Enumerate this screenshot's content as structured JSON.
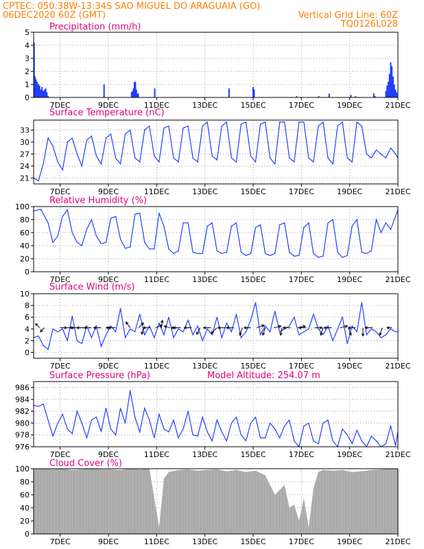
{
  "header": {
    "line1_left": "CPTEC:   050:38W-13:34S  SAO MIGUEL DO ARAGUAIA (GO)",
    "line2_left": "06DEC2020 60Z (GMT)",
    "line2_right": "Vertical Grid Line: 60Z",
    "line3_right": "TQ0126L028"
  },
  "colors": {
    "series": "#1f3fff",
    "cloud": "#aaaaaa",
    "header_text": "#ff7f00",
    "panel_title": "#e0007f"
  },
  "x_axis": {
    "tick_labels": [
      "7DEC",
      "9DEC",
      "11DEC",
      "13DEC",
      "15DEC",
      "17DEC",
      "19DEC",
      "21DEC"
    ],
    "start_day": 5.9,
    "end_day": 21.0
  },
  "chart_data": [
    {
      "type": "bar",
      "title": "Precipitation (mm/h)",
      "ylim": [
        0,
        5
      ],
      "yticks": [
        "0",
        "1",
        "2",
        "3",
        "4",
        "5"
      ],
      "x_days": [
        5.92,
        5.96,
        6.0,
        6.05,
        6.1,
        6.15,
        6.2,
        6.25,
        6.3,
        6.35,
        6.4,
        6.45,
        6.5,
        8.82,
        9.96,
        10.0,
        10.04,
        10.08,
        10.12,
        10.16,
        10.2,
        10.24,
        10.92,
        14.0,
        15.0,
        15.04,
        16.8,
        17.72,
        18.15,
        19.05,
        19.25,
        20.0,
        20.05,
        20.5,
        20.55,
        20.6,
        20.65,
        20.7,
        20.75,
        20.8,
        20.85,
        20.9,
        20.95
      ],
      "values": [
        4.2,
        1.6,
        1.4,
        1.2,
        1.0,
        0.9,
        0.6,
        0.8,
        0.5,
        0.6,
        0.7,
        0.4,
        0.1,
        1.0,
        0.4,
        0.5,
        0.7,
        1.2,
        1.2,
        0.6,
        0.3,
        0.3,
        0.7,
        0.7,
        0.8,
        0.6,
        0.1,
        0.1,
        0.3,
        0.2,
        0.1,
        0.3,
        0.1,
        0.5,
        0.9,
        1.2,
        1.8,
        2.7,
        2.4,
        1.6,
        1.0,
        0.6,
        0.4
      ]
    },
    {
      "type": "line",
      "title": "Surface Temperature (nC)",
      "ylim": [
        19.5,
        35.5
      ],
      "yticks": [
        "21",
        "24",
        "27",
        "30",
        "33"
      ],
      "x_days": [
        5.9,
        6.1,
        6.3,
        6.5,
        6.7,
        6.9,
        7.1,
        7.3,
        7.5,
        7.7,
        7.9,
        8.1,
        8.3,
        8.5,
        8.7,
        8.9,
        9.1,
        9.3,
        9.5,
        9.7,
        9.9,
        10.1,
        10.3,
        10.5,
        10.7,
        10.9,
        11.1,
        11.3,
        11.5,
        11.7,
        11.9,
        12.1,
        12.3,
        12.5,
        12.7,
        12.9,
        13.1,
        13.3,
        13.5,
        13.7,
        13.9,
        14.1,
        14.3,
        14.5,
        14.7,
        14.9,
        15.1,
        15.3,
        15.5,
        15.7,
        15.9,
        16.1,
        16.3,
        16.5,
        16.7,
        16.9,
        17.1,
        17.3,
        17.5,
        17.7,
        17.9,
        18.1,
        18.3,
        18.5,
        18.7,
        18.9,
        19.1,
        19.3,
        19.5,
        19.7,
        19.9,
        20.1,
        20.3,
        20.5,
        20.7,
        20.9,
        21.0
      ],
      "values": [
        21.0,
        20.3,
        24.5,
        31.0,
        29.0,
        25.0,
        23.0,
        30.0,
        31.0,
        27.0,
        24.0,
        30.5,
        31.5,
        26.5,
        24.5,
        31.0,
        32.0,
        26.0,
        24.5,
        32.0,
        33.0,
        26.0,
        25.0,
        33.0,
        34.0,
        26.5,
        25.0,
        33.5,
        34.0,
        26.0,
        25.0,
        33.5,
        34.0,
        26.0,
        25.0,
        34.0,
        35.0,
        26.5,
        25.5,
        34.0,
        35.0,
        26.0,
        25.0,
        34.5,
        35.0,
        26.5,
        25.0,
        34.5,
        35.0,
        26.0,
        24.5,
        35.0,
        35.0,
        26.0,
        25.0,
        35.0,
        35.0,
        26.0,
        25.0,
        34.0,
        35.0,
        26.0,
        24.5,
        34.0,
        35.0,
        26.0,
        25.0,
        35.0,
        34.0,
        27.0,
        26.0,
        28.0,
        27.0,
        26.0,
        28.5,
        27.0,
        26.0
      ]
    },
    {
      "type": "line",
      "title": "Relative Humidity (%)",
      "ylim": [
        0,
        100
      ],
      "yticks": [
        "0",
        "20",
        "40",
        "60",
        "80",
        "100"
      ],
      "x_days": [
        5.9,
        6.2,
        6.5,
        6.7,
        6.9,
        7.1,
        7.3,
        7.5,
        7.7,
        7.9,
        8.1,
        8.3,
        8.5,
        8.7,
        8.9,
        9.1,
        9.3,
        9.5,
        9.7,
        9.9,
        10.1,
        10.3,
        10.5,
        10.7,
        10.9,
        11.1,
        11.3,
        11.5,
        11.7,
        11.9,
        12.1,
        12.3,
        12.5,
        12.7,
        12.9,
        13.1,
        13.3,
        13.5,
        13.7,
        13.9,
        14.1,
        14.3,
        14.5,
        14.7,
        14.9,
        15.1,
        15.3,
        15.5,
        15.7,
        15.9,
        16.1,
        16.3,
        16.5,
        16.7,
        16.9,
        17.1,
        17.3,
        17.5,
        17.7,
        17.9,
        18.1,
        18.3,
        18.5,
        18.7,
        18.9,
        19.1,
        19.3,
        19.5,
        19.7,
        19.9,
        20.1,
        20.3,
        20.5,
        20.7,
        20.9,
        21.0
      ],
      "values": [
        93,
        96,
        75,
        45,
        55,
        85,
        95,
        60,
        45,
        40,
        65,
        80,
        55,
        43,
        45,
        82,
        85,
        50,
        36,
        38,
        88,
        90,
        45,
        35,
        35,
        90,
        70,
        35,
        28,
        32,
        75,
        75,
        30,
        28,
        28,
        70,
        75,
        32,
        28,
        30,
        70,
        75,
        30,
        25,
        28,
        68,
        72,
        28,
        25,
        28,
        72,
        75,
        30,
        24,
        25,
        68,
        75,
        28,
        22,
        24,
        75,
        80,
        30,
        22,
        25,
        70,
        80,
        30,
        28,
        32,
        80,
        60,
        75,
        65,
        85,
        95
      ]
    },
    {
      "type": "line",
      "title": "Surface Wind (m/s)",
      "ylim": [
        -1,
        10
      ],
      "yticks": [
        "0",
        "2",
        "4",
        "6",
        "8",
        "10"
      ],
      "x_days": [
        5.9,
        6.1,
        6.3,
        6.5,
        6.7,
        6.9,
        7.1,
        7.3,
        7.5,
        7.7,
        7.9,
        8.1,
        8.3,
        8.5,
        8.7,
        8.9,
        9.1,
        9.3,
        9.5,
        9.7,
        9.9,
        10.1,
        10.3,
        10.5,
        10.7,
        10.9,
        11.1,
        11.3,
        11.5,
        11.7,
        11.9,
        12.1,
        12.3,
        12.5,
        12.7,
        12.9,
        13.1,
        13.3,
        13.5,
        13.7,
        13.9,
        14.1,
        14.3,
        14.5,
        14.7,
        14.9,
        15.1,
        15.3,
        15.5,
        15.7,
        15.9,
        16.1,
        16.3,
        16.5,
        16.7,
        16.9,
        17.1,
        17.3,
        17.5,
        17.7,
        17.9,
        18.1,
        18.3,
        18.5,
        18.7,
        18.9,
        19.1,
        19.3,
        19.5,
        19.7,
        19.9,
        20.1,
        20.3,
        20.5,
        20.7,
        20.9,
        21.0
      ],
      "values": [
        2.5,
        2.8,
        1.2,
        0.5,
        4.0,
        3.5,
        4.0,
        2.0,
        6.2,
        2.0,
        1.5,
        4.5,
        2.5,
        4.5,
        1.0,
        3.0,
        4.5,
        3.5,
        7.5,
        2.5,
        4.0,
        3.5,
        6.5,
        3.0,
        4.5,
        2.5,
        5.0,
        3.0,
        6.0,
        2.5,
        4.0,
        3.5,
        5.5,
        3.0,
        4.5,
        2.0,
        4.0,
        3.0,
        6.0,
        2.5,
        5.0,
        3.5,
        6.5,
        2.5,
        3.5,
        5.5,
        8.5,
        3.0,
        4.5,
        3.5,
        7.0,
        3.5,
        4.0,
        4.5,
        6.0,
        3.0,
        3.5,
        4.0,
        6.5,
        4.0,
        3.0,
        4.5,
        2.0,
        4.0,
        6.0,
        1.5,
        4.5,
        3.5,
        8.5,
        3.0,
        4.0,
        3.5,
        2.5,
        3.0,
        4.0,
        3.5,
        3.5
      ],
      "arrows": {
        "x_days": [
          6.15,
          6.35,
          7.0,
          7.3,
          7.7,
          8.0,
          8.3,
          8.7,
          9.15,
          9.3,
          9.9,
          10.25,
          10.45,
          10.75,
          10.95,
          11.2,
          11.55,
          11.85,
          12.0,
          12.45,
          12.8,
          13.25,
          13.5,
          13.85,
          14.2,
          14.55,
          14.9,
          15.15,
          15.5,
          15.85,
          16.2,
          16.55,
          16.85,
          17.2,
          17.55,
          17.9,
          18.25,
          18.6,
          18.95,
          19.25,
          19.55,
          19.95,
          20.35,
          20.75
        ],
        "u": [
          -0.5,
          -0.5,
          0.8,
          0.8,
          -0.9,
          -0.9,
          -0.9,
          -0.9,
          -0.7,
          -0.9,
          -0.5,
          0.6,
          -0.2,
          -0.9,
          0.8,
          0.1,
          -0.7,
          -0.7,
          -0.9,
          -0.9,
          -0.4,
          -0.9,
          -0.7,
          -0.9,
          -0.9,
          -0.3,
          -0.8,
          0.9,
          -0.3,
          0.9,
          -0.2,
          -0.9,
          0.9,
          -0.9,
          0.9,
          -0.3,
          -0.9,
          0.9,
          0.3,
          -0.9,
          0.0,
          -0.9,
          -0.3,
          -0.6
        ],
        "v": [
          0.5,
          -0.5,
          0.0,
          0.0,
          0.0,
          0.0,
          0.0,
          0.0,
          0.0,
          0.0,
          0.7,
          0.6,
          -0.8,
          0.0,
          0.3,
          0.9,
          0.2,
          0.0,
          0.0,
          0.0,
          -0.8,
          0.0,
          -0.7,
          0.0,
          0.0,
          -0.9,
          0.0,
          0.3,
          -0.9,
          0.2,
          -0.9,
          0.0,
          0.2,
          0.0,
          0.0,
          -0.9,
          0.0,
          0.2,
          -0.9,
          0.0,
          -1.0,
          0.0,
          -0.9,
          0.0
        ]
      }
    },
    {
      "type": "line",
      "title": "Surface Pressure (hPa)",
      "annotation": "Model Altitude: 254.07 m",
      "ylim": [
        976,
        987
      ],
      "yticks": [
        "976",
        "978",
        "980",
        "982",
        "984",
        "986"
      ],
      "x_days": [
        5.9,
        6.1,
        6.3,
        6.5,
        6.7,
        6.9,
        7.1,
        7.3,
        7.5,
        7.7,
        7.9,
        8.1,
        8.3,
        8.5,
        8.7,
        8.9,
        9.1,
        9.3,
        9.5,
        9.7,
        9.9,
        10.1,
        10.3,
        10.5,
        10.7,
        10.9,
        11.1,
        11.3,
        11.5,
        11.7,
        11.9,
        12.1,
        12.3,
        12.5,
        12.7,
        12.9,
        13.1,
        13.3,
        13.5,
        13.7,
        13.9,
        14.1,
        14.3,
        14.5,
        14.7,
        14.9,
        15.1,
        15.3,
        15.5,
        15.7,
        15.9,
        16.1,
        16.3,
        16.5,
        16.7,
        16.9,
        17.1,
        17.3,
        17.5,
        17.7,
        17.9,
        18.1,
        18.3,
        18.5,
        18.7,
        18.9,
        19.1,
        19.3,
        19.5,
        19.7,
        19.9,
        20.1,
        20.3,
        20.5,
        20.7,
        20.9,
        21.0
      ],
      "values": [
        983,
        982.8,
        983.2,
        980.5,
        977.8,
        980,
        981.5,
        979,
        978.2,
        982,
        980,
        977.5,
        980.5,
        981,
        978.6,
        982.5,
        979,
        978,
        982.5,
        980,
        985.5,
        981,
        978.5,
        982.5,
        980.5,
        977.5,
        981.5,
        979,
        978.5,
        980.5,
        977.5,
        979,
        982,
        978,
        977.8,
        981,
        978.5,
        977,
        980.5,
        978.5,
        977,
        980,
        981,
        978,
        977,
        980,
        981,
        977.5,
        977.5,
        980,
        979,
        977.5,
        979.5,
        980.5,
        977,
        976,
        979.5,
        980,
        977,
        976.5,
        980,
        980.5,
        977,
        976,
        979,
        978,
        976.5,
        978.8,
        977,
        976,
        977.8,
        977,
        976,
        976.5,
        979.5,
        976.2,
        978.5
      ]
    },
    {
      "type": "bar",
      "title": "Cloud Cover (%)",
      "ylim": [
        0,
        100
      ],
      "yticks": [
        "0",
        "20",
        "40",
        "60",
        "80",
        "100"
      ],
      "x_days": [
        5.9,
        6.3,
        6.7,
        7.1,
        7.5,
        7.9,
        8.3,
        8.7,
        9.1,
        9.5,
        9.9,
        10.3,
        10.7,
        11.1,
        11.3,
        11.5,
        11.9,
        12.3,
        12.7,
        13.1,
        13.5,
        13.9,
        14.3,
        14.7,
        15.1,
        15.5,
        15.9,
        16.3,
        16.5,
        16.7,
        16.9,
        17.1,
        17.3,
        17.5,
        17.7,
        17.9,
        18.3,
        18.7,
        19.1,
        19.5,
        19.9,
        20.3,
        20.7,
        21.0
      ],
      "values": [
        99,
        100,
        99,
        100,
        98,
        99,
        100,
        99,
        99,
        98,
        100,
        99,
        100,
        10,
        85,
        95,
        98,
        99,
        97,
        98,
        99,
        96,
        98,
        95,
        97,
        90,
        60,
        75,
        40,
        45,
        20,
        55,
        10,
        70,
        95,
        98,
        97,
        98,
        95,
        96,
        98,
        99,
        100,
        99
      ]
    }
  ]
}
